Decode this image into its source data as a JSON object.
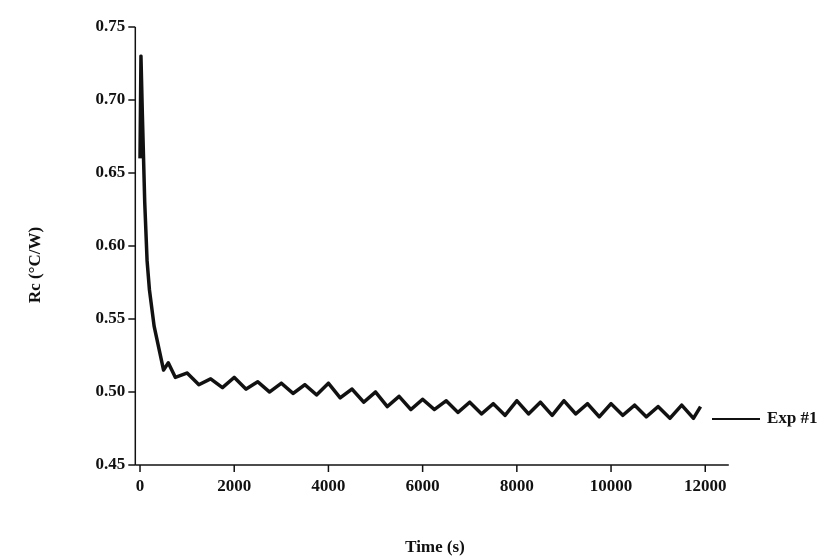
{
  "chart_data": {
    "type": "line",
    "x_label": "Time (s)",
    "y_label": "Rc (°C/W)",
    "xlim": [
      -100,
      12500
    ],
    "ylim": [
      0.45,
      0.75
    ],
    "xticks": [
      0,
      2000,
      4000,
      6000,
      8000,
      10000,
      12000
    ],
    "yticks": [
      {
        "value": 0.45,
        "label": "0.45"
      },
      {
        "value": 0.5,
        "label": "0.50"
      },
      {
        "value": 0.55,
        "label": "0.55"
      },
      {
        "value": 0.6,
        "label": "0.60"
      },
      {
        "value": 0.65,
        "label": "0.65"
      },
      {
        "value": 0.7,
        "label": "0.70"
      },
      {
        "value": 0.75,
        "label": "0.75"
      }
    ],
    "legend": "right",
    "x": [
      0,
      20,
      50,
      100,
      150,
      200,
      300,
      400,
      500,
      600,
      750,
      1000,
      1250,
      1500,
      1750,
      2000,
      2250,
      2500,
      2750,
      3000,
      3250,
      3500,
      3750,
      4000,
      4250,
      4500,
      4750,
      5000,
      5250,
      5500,
      5750,
      6000,
      6250,
      6500,
      6750,
      7000,
      7250,
      7500,
      7750,
      8000,
      8250,
      8500,
      8750,
      9000,
      9250,
      9500,
      9750,
      10000,
      10250,
      10500,
      10750,
      11000,
      11250,
      11500,
      11750,
      11900
    ],
    "series": [
      {
        "name": "Exp #1",
        "color": "#111111",
        "values": [
          0.66,
          0.73,
          0.69,
          0.63,
          0.59,
          0.57,
          0.545,
          0.53,
          0.515,
          0.52,
          0.51,
          0.513,
          0.505,
          0.509,
          0.503,
          0.51,
          0.502,
          0.507,
          0.5,
          0.506,
          0.499,
          0.505,
          0.498,
          0.506,
          0.496,
          0.502,
          0.493,
          0.5,
          0.49,
          0.497,
          0.488,
          0.495,
          0.488,
          0.494,
          0.486,
          0.493,
          0.485,
          0.492,
          0.484,
          0.494,
          0.485,
          0.493,
          0.484,
          0.494,
          0.485,
          0.492,
          0.483,
          0.492,
          0.484,
          0.491,
          0.483,
          0.49,
          0.482,
          0.491,
          0.482,
          0.49
        ]
      }
    ]
  }
}
